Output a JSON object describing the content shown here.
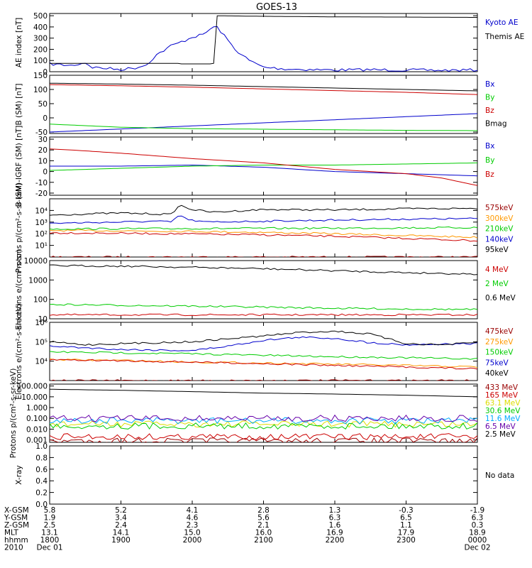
{
  "title": "GOES-13",
  "colors": {
    "black": "#000000",
    "blue": "#0000cc",
    "red": "#cc0000",
    "green": "#00cc00",
    "orange": "#ff9900",
    "cyan": "#00aaff",
    "purple": "#6600aa",
    "darkred": "#990000",
    "yellow": "#dddd00",
    "dark": "#222222"
  },
  "chart_data": [
    {
      "type": "line",
      "ylabel": "AE index [nT]",
      "ylim": [
        0,
        520
      ],
      "yticks": [
        "0",
        "100",
        "200",
        "300",
        "400",
        "500"
      ],
      "ytick_values": [
        0,
        100,
        200,
        300,
        400,
        500
      ],
      "scale": "linear",
      "x_range_hours": [
        18,
        24
      ],
      "series": [
        {
          "name": "Kyoto AE",
          "color": "blue",
          "x": [
            18,
            18.3,
            18.5,
            18.6,
            18.8,
            19.0,
            19.2,
            19.35,
            19.5,
            19.7,
            19.9,
            20.0,
            20.15,
            20.25,
            20.33,
            20.4,
            20.5,
            20.6,
            20.8,
            21.0,
            21.3,
            21.6,
            22.0,
            22.5,
            23.0,
            23.5,
            24.0
          ],
          "y": [
            70,
            55,
            80,
            40,
            30,
            20,
            35,
            60,
            150,
            230,
            280,
            310,
            330,
            380,
            410,
            360,
            280,
            200,
            100,
            40,
            25,
            20,
            15,
            18,
            15,
            12,
            15
          ]
        },
        {
          "name": "Themis AE",
          "color": "black",
          "x": [
            18,
            19.8,
            19.8,
            20.26,
            20.26,
            20.3,
            20.3,
            21,
            22,
            23,
            24
          ],
          "y": [
            75,
            75,
            70,
            70,
            75,
            75,
            500,
            495,
            490,
            488,
            485
          ]
        }
      ]
    },
    {
      "type": "line",
      "ylabel": "B (SM) [nT]",
      "ylim": [
        -55,
        150
      ],
      "yticks": [
        "-50",
        "0",
        "50",
        "100",
        "150"
      ],
      "ytick_values": [
        -50,
        0,
        50,
        100,
        150
      ],
      "scale": "linear",
      "x_range_hours": [
        18,
        24
      ],
      "series": [
        {
          "name": "Bx",
          "color": "blue",
          "x": [
            18,
            24
          ],
          "y": [
            -50,
            15
          ]
        },
        {
          "name": "By",
          "color": "green",
          "x": [
            18,
            19,
            20,
            21,
            22,
            23,
            24
          ],
          "y": [
            -22,
            -33,
            -38,
            -40,
            -42,
            -44,
            -45
          ]
        },
        {
          "name": "Bz",
          "color": "red",
          "x": [
            18,
            19,
            20,
            21,
            22,
            23,
            24
          ],
          "y": [
            117,
            113,
            108,
            102,
            96,
            90,
            82
          ]
        },
        {
          "name": "Bmag",
          "color": "black",
          "x": [
            18,
            19,
            20,
            21,
            22,
            23,
            24
          ],
          "y": [
            122,
            119,
            115,
            110,
            105,
            100,
            95
          ]
        }
      ]
    },
    {
      "type": "line",
      "ylabel": "B (SM)-IGRF (SM) [nT]",
      "ylim": [
        -22,
        32
      ],
      "yticks": [
        "-20",
        "-10",
        "0",
        "10",
        "20",
        "30"
      ],
      "ytick_values": [
        -20,
        -10,
        0,
        10,
        20,
        30
      ],
      "scale": "linear",
      "x_range_hours": [
        18,
        24
      ],
      "series": [
        {
          "name": "Bx",
          "color": "blue",
          "x": [
            18,
            19,
            20,
            21,
            22,
            23,
            24
          ],
          "y": [
            5,
            5,
            6,
            4,
            0,
            -2,
            -4
          ]
        },
        {
          "name": "By",
          "color": "green",
          "x": [
            18,
            19,
            20,
            21,
            22,
            23,
            24
          ],
          "y": [
            1,
            3,
            5,
            6,
            6,
            7,
            8
          ]
        },
        {
          "name": "Bz",
          "color": "red",
          "x": [
            18,
            18.3,
            19,
            19.6,
            20,
            20.5,
            21,
            21.5,
            22,
            22.5,
            23,
            23.5,
            24
          ],
          "y": [
            21,
            20,
            17,
            14,
            12,
            10,
            8,
            5,
            2,
            0,
            -2,
            -6,
            -13
          ]
        }
      ]
    },
    {
      "type": "line",
      "ylabel": "Protons p/(cm²-s-sr-keV)",
      "ylim": [
        1,
        100000
      ],
      "ytick_values": [
        10,
        100,
        1000,
        10000
      ],
      "yticks": [
        "10¹",
        "10²",
        "10³",
        "10⁴"
      ],
      "scale": "log",
      "x_range_hours": [
        18,
        24
      ],
      "series": [
        {
          "name": "575keV",
          "color": "darkred",
          "x": [
            18,
            20,
            22,
            24
          ],
          "y": [
            1,
            1,
            1,
            1
          ]
        },
        {
          "name": "300keV",
          "color": "orange",
          "x": [
            18,
            19,
            20,
            21,
            22,
            23,
            24
          ],
          "y": [
            190,
            180,
            160,
            130,
            100,
            70,
            50
          ]
        },
        {
          "name": "210keV",
          "color": "green",
          "x": [
            18,
            19,
            20,
            21,
            22,
            23,
            24
          ],
          "y": [
            260,
            270,
            280,
            290,
            300,
            320,
            340
          ]
        },
        {
          "name": "140keV",
          "color": "blue",
          "x": [
            18,
            18.5,
            19,
            19.5,
            19.7,
            19.78,
            19.85,
            19.95,
            20.2,
            21,
            22,
            23,
            24
          ],
          "y": [
            800,
            900,
            1000,
            1200,
            1000,
            2500,
            3500,
            1500,
            1000,
            1200,
            1500,
            1800,
            2000
          ]
        },
        {
          "name": "95keV",
          "color": "black",
          "x": [
            18,
            18.5,
            19,
            19.5,
            19.7,
            19.8,
            19.85,
            20.0,
            20.3,
            20.6,
            21,
            22,
            23,
            24
          ],
          "y": [
            4000,
            5000,
            6000,
            5000,
            4500,
            20000,
            25000,
            12000,
            7000,
            9000,
            12000,
            11000,
            14000,
            15000
          ]
        },
        {
          "name": "",
          "color": "red",
          "x": [
            18,
            19,
            20,
            21,
            22,
            23,
            24
          ],
          "y": [
            120,
            110,
            95,
            80,
            60,
            40,
            25
          ]
        }
      ]
    },
    {
      "type": "line",
      "ylabel": "Electrons e/(cm²-s-sr)",
      "ylim": [
        10,
        10000
      ],
      "ytick_values": [
        10,
        100,
        1000,
        10000
      ],
      "yticks": [
        "10",
        "100",
        "1000",
        "10000"
      ],
      "scale": "log",
      "x_range_hours": [
        18,
        24
      ],
      "series": [
        {
          "name": "4 MeV",
          "color": "red",
          "x": [
            18,
            21,
            24
          ],
          "y": [
            16,
            16,
            16
          ]
        },
        {
          "name": "2 MeV",
          "color": "green",
          "x": [
            18,
            19,
            20,
            21,
            22,
            23,
            24
          ],
          "y": [
            55,
            50,
            45,
            40,
            35,
            32,
            30
          ]
        },
        {
          "name": "0.6 MeV",
          "color": "black",
          "x": [
            18,
            19,
            20,
            21,
            22,
            23,
            24
          ],
          "y": [
            5500,
            5200,
            4500,
            3800,
            3000,
            2400,
            2000
          ]
        }
      ]
    },
    {
      "type": "line",
      "ylabel": "Electrons e/(cm²-s-sr-keV)",
      "ylim": [
        1000,
        1000000
      ],
      "ytick_values": [
        10000,
        100000,
        1000000
      ],
      "yticks": [
        "10⁴",
        "10⁵",
        "10⁶"
      ],
      "scale": "log",
      "x_range_hours": [
        18,
        24
      ],
      "series": [
        {
          "name": "475keV",
          "color": "darkred",
          "x": [
            18,
            24
          ],
          "y": [
            1000,
            1000
          ]
        },
        {
          "name": "275keV",
          "color": "orange",
          "x": [
            18,
            19,
            20,
            21,
            22,
            23,
            24
          ],
          "y": [
            12000,
            11000,
            9000,
            8000,
            7000,
            6000,
            5000
          ]
        },
        {
          "name": "150keV",
          "color": "green",
          "x": [
            18,
            19,
            20,
            21,
            22,
            23,
            24
          ],
          "y": [
            30000,
            27000,
            24000,
            20000,
            17000,
            15000,
            13000
          ]
        },
        {
          "name": "75keV",
          "color": "blue",
          "x": [
            18,
            19,
            20,
            20.5,
            21,
            21.5,
            22,
            22.5,
            23,
            24
          ],
          "y": [
            60000,
            40000,
            35000,
            60000,
            120000,
            170000,
            150000,
            90000,
            70000,
            80000
          ]
        },
        {
          "name": "40keV",
          "color": "black",
          "x": [
            18,
            18.5,
            19,
            20,
            21,
            21.5,
            22,
            22.5,
            23,
            23.5,
            24
          ],
          "y": [
            100000,
            70000,
            80000,
            100000,
            200000,
            300000,
            350000,
            250000,
            80000,
            70000,
            90000
          ]
        },
        {
          "name": "",
          "color": "red",
          "x": [
            18,
            19,
            20,
            21,
            22,
            23,
            24
          ],
          "y": [
            12000,
            10500,
            9000,
            7500,
            6000,
            5000,
            4000
          ]
        }
      ]
    },
    {
      "type": "line",
      "ylabel": "Protons p/(cm²-s-sr-keV)",
      "ylim": [
        0.0006,
        150
      ],
      "ytick_values": [
        0.001,
        0.01,
        0.1,
        1,
        10,
        100
      ],
      "yticks": [
        "0.001",
        "0.010",
        "0.100",
        "1.000",
        "10.000",
        "100.000"
      ],
      "scale": "log",
      "x_range_hours": [
        18,
        24
      ],
      "series": [
        {
          "name": "433 MeV",
          "color": "darkred",
          "x": [
            18,
            24
          ],
          "y": [
            0.0008,
            0.0008
          ]
        },
        {
          "name": "165 MeV",
          "color": "red",
          "x": [
            18,
            24
          ],
          "y": [
            0.002,
            0.002
          ]
        },
        {
          "name": "63.1 MeV",
          "color": "yellow",
          "x": [
            18,
            24
          ],
          "y": [
            0.03,
            0.03
          ]
        },
        {
          "name": "30.6 MeV",
          "color": "green",
          "x": [
            18,
            24
          ],
          "y": [
            0.02,
            0.02
          ]
        },
        {
          "name": "11.6 MeV",
          "color": "cyan",
          "x": [
            18,
            24
          ],
          "y": [
            0.06,
            0.06
          ]
        },
        {
          "name": "6.5 MeV",
          "color": "purple",
          "x": [
            18,
            24
          ],
          "y": [
            0.1,
            0.1
          ]
        },
        {
          "name": "2.5 MeV",
          "color": "black",
          "x": [
            18,
            19,
            20,
            21,
            22,
            23,
            24
          ],
          "y": [
            50,
            40,
            30,
            22,
            18,
            14,
            10
          ]
        }
      ]
    },
    {
      "type": "line",
      "ylabel": "X-ray",
      "ylim": [
        0,
        1
      ],
      "ytick_values": [
        0,
        0.2,
        0.4,
        0.6,
        0.8,
        1.0
      ],
      "yticks": [
        "0.0",
        "0.2",
        "0.4",
        "0.6",
        "0.8",
        "1.0"
      ],
      "scale": "linear",
      "x_range_hours": [
        18,
        24
      ],
      "series": [],
      "note": "No data"
    }
  ],
  "xaxis": {
    "row_labels": [
      "X-GSM",
      "Y-GSM",
      "Z-GSM",
      "MLT",
      "hhmm",
      "2010"
    ],
    "columns": [
      [
        "5.8",
        "1.9",
        "2.5",
        "13.1",
        "1800",
        "Dec 01"
      ],
      [
        "5.2",
        "3.4",
        "2.4",
        "14.1",
        "1900",
        ""
      ],
      [
        "4.1",
        "4.6",
        "2.3",
        "15.0",
        "2000",
        ""
      ],
      [
        "2.8",
        "5.6",
        "2.1",
        "16.0",
        "2100",
        ""
      ],
      [
        "1.3",
        "6.3",
        "1.6",
        "16.9",
        "2200",
        ""
      ],
      [
        "-0.3",
        "6.5",
        "1.1",
        "17.9",
        "2300",
        ""
      ],
      [
        "-1.9",
        "6.3",
        "0.3",
        "18.9",
        "0000",
        "Dec 02"
      ]
    ]
  }
}
